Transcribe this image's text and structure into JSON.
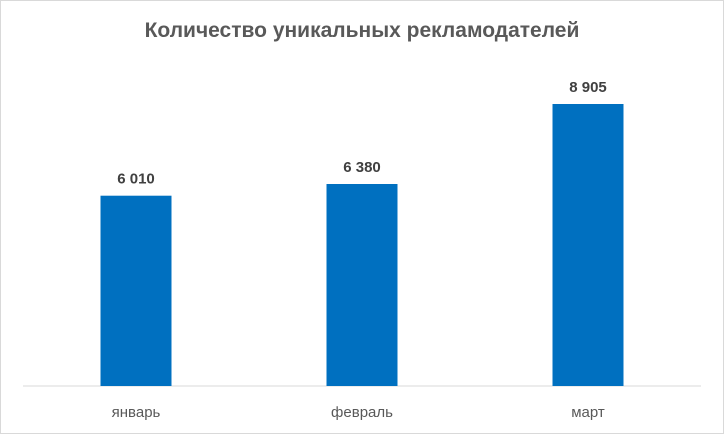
{
  "chart_data": {
    "type": "bar",
    "title": "Количество уникальных рекламодателей",
    "categories": [
      "январь",
      "февраль",
      "март"
    ],
    "values": [
      6010,
      6380,
      8905
    ],
    "value_labels": [
      "6 010",
      "6 380",
      "8 905"
    ],
    "xlabel": "",
    "ylabel": "",
    "ylim": [
      0,
      10000
    ],
    "grid": false,
    "legend": "none",
    "bar_color": "#0070C0"
  }
}
